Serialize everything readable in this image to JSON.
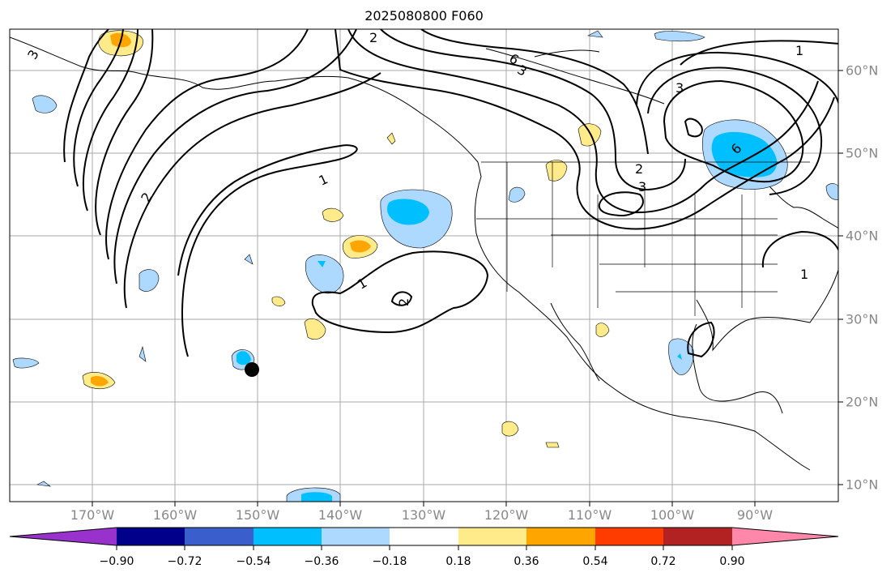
{
  "title": "2025080800 F060",
  "lon_labels": [
    "170°W",
    "160°W",
    "150°W",
    "140°W",
    "130°W",
    "120°W",
    "110°W",
    "100°W",
    "90°W"
  ],
  "lat_labels": [
    "60°N",
    "50°N",
    "40°N",
    "30°N",
    "20°N",
    "10°N"
  ],
  "colorbar": {
    "ticks": [
      "−0.90",
      "−0.72",
      "−0.54",
      "−0.36",
      "−0.18",
      "0.18",
      "0.36",
      "0.54",
      "0.72",
      "0.90"
    ],
    "colors": [
      "#9932cc",
      "#00008b",
      "#3a5fcd",
      "#00bfff",
      "#add8ff",
      "#ffffff",
      "#ffeb8a",
      "#ffa500",
      "#ff3c00",
      "#b22222",
      "#ff88aa"
    ]
  },
  "contour_labels": [
    "1",
    "1",
    "1",
    "1",
    "2",
    "2",
    "2",
    "2",
    "3",
    "3",
    "3",
    "3",
    "6",
    "6"
  ],
  "marker": "black-dot-marker"
}
